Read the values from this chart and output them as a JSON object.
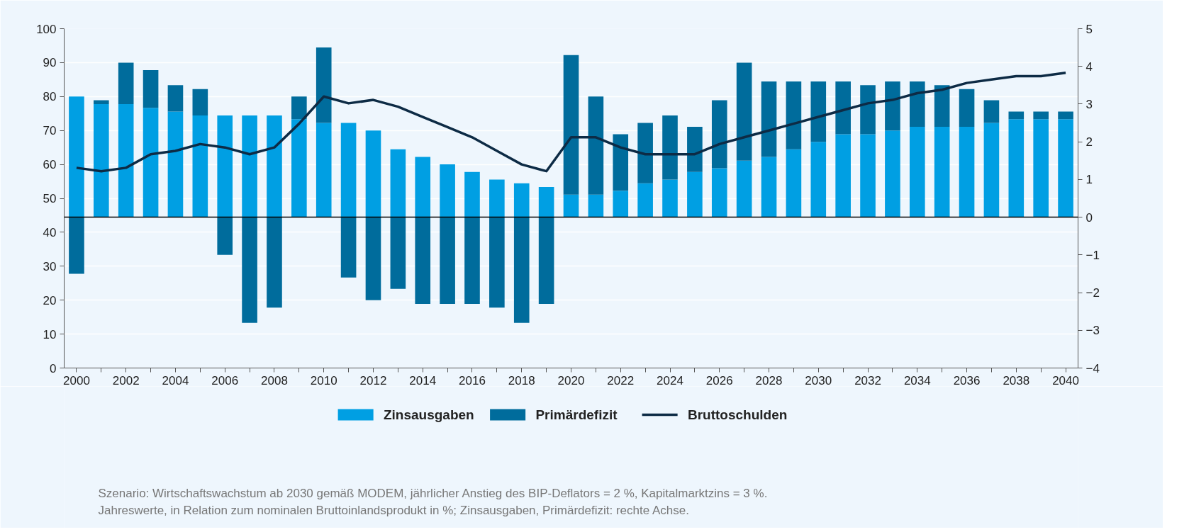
{
  "chart_data": {
    "type": "bar",
    "stacked": true,
    "x": [
      2000,
      2001,
      2002,
      2003,
      2004,
      2005,
      2006,
      2007,
      2008,
      2009,
      2010,
      2011,
      2012,
      2013,
      2014,
      2015,
      2016,
      2017,
      2018,
      2019,
      2020,
      2021,
      2022,
      2023,
      2024,
      2025,
      2026,
      2027,
      2028,
      2029,
      2030,
      2031,
      2032,
      2033,
      2034,
      2035,
      2036,
      2037,
      2038,
      2039,
      2040
    ],
    "series": [
      {
        "name": "Zinsausgaben",
        "color": "#009fe3",
        "axis": "y2",
        "values": [
          3.2,
          3.0,
          3.0,
          2.9,
          2.8,
          2.7,
          2.7,
          2.7,
          2.7,
          2.6,
          2.5,
          2.5,
          2.3,
          1.8,
          1.6,
          1.4,
          1.2,
          1.0,
          0.9,
          0.8,
          0.6,
          0.6,
          0.7,
          0.9,
          1.0,
          1.2,
          1.3,
          1.5,
          1.6,
          1.8,
          2.0,
          2.2,
          2.2,
          2.3,
          2.4,
          2.4,
          2.4,
          2.5,
          2.6,
          2.6,
          2.6
        ]
      },
      {
        "name": "Primärdefizit",
        "color": "#006c9c",
        "axis": "y2",
        "values": [
          -1.5,
          0.1,
          1.1,
          1.0,
          0.7,
          0.7,
          -1.0,
          -2.8,
          -2.4,
          0.6,
          2.0,
          -1.6,
          -2.2,
          -1.9,
          -2.3,
          -2.3,
          -2.3,
          -2.4,
          -2.8,
          -2.3,
          3.7,
          2.6,
          1.5,
          1.6,
          1.7,
          1.2,
          1.8,
          2.6,
          2.0,
          1.8,
          1.6,
          1.4,
          1.3,
          1.3,
          1.2,
          1.1,
          1.0,
          0.6,
          0.2,
          0.2,
          0.2
        ]
      },
      {
        "name": "Bruttoschulden",
        "type": "line",
        "color": "#0d2b45",
        "axis": "y",
        "values": [
          59,
          58,
          59,
          63,
          64,
          66,
          65,
          63,
          65,
          72,
          80,
          78,
          79,
          77,
          74,
          71,
          68,
          64,
          60,
          58,
          68,
          68,
          65,
          63,
          63,
          63,
          66,
          68,
          70,
          72,
          74,
          76,
          78,
          79,
          81,
          82,
          84,
          85,
          86,
          86,
          87
        ]
      }
    ],
    "xlim": [
      1999.5,
      2040.5
    ],
    "xticks": [
      2000,
      {
        "value": 2001,
        "label": null
      },
      2002,
      {
        "value": 2003,
        "label": null
      },
      2004,
      {
        "value": 2005,
        "label": null
      },
      2006,
      {
        "value": 2007,
        "label": null
      },
      2008,
      {
        "value": 2009,
        "label": null
      },
      2010,
      {
        "value": 2011,
        "label": null
      },
      2012,
      {
        "value": 2013,
        "label": null
      },
      2014,
      {
        "value": 2015,
        "label": null
      },
      2016,
      {
        "value": 2017,
        "label": null
      },
      2018,
      {
        "value": 2019,
        "label": null
      },
      2020,
      {
        "value": 2021,
        "label": null
      },
      2022,
      {
        "value": 2023,
        "label": null
      },
      2024,
      {
        "value": 2025,
        "label": null
      },
      2026,
      {
        "value": 2027,
        "label": null
      },
      2028,
      {
        "value": 2029,
        "label": null
      },
      2030,
      {
        "value": 2031,
        "label": null
      },
      2032,
      {
        "value": 2033,
        "label": null
      },
      2034,
      {
        "value": 2035,
        "label": null
      },
      2036,
      {
        "value": 2037,
        "label": null
      },
      2038,
      {
        "value": 2039,
        "label": null
      },
      2040
    ],
    "ylim": [
      0,
      100
    ],
    "yticks": [
      0,
      10,
      20,
      30,
      40,
      50,
      60,
      70,
      80,
      90,
      100
    ],
    "y2lim": [
      -4,
      5
    ],
    "y2ticks": [
      {
        "value": -4,
        "label": "−4"
      },
      {
        "value": -3,
        "label": "−3"
      },
      {
        "value": -2,
        "label": "−2"
      },
      {
        "value": -1,
        "label": "−1"
      },
      0,
      1,
      2,
      3,
      4,
      5
    ],
    "ref_lines": [
      {
        "axis": "y2",
        "value": 0,
        "color": "#000000"
      }
    ],
    "grid": "y",
    "legend": "bottom",
    "annotations": [
      "Szenario: Wirtschaftswachstum ab 2030 gemäß MODEM, jährlicher Anstieg des BIP-Deflators = 2 %, Kapitalmarktzins = 3 %.",
      "Jahreswerte, in Relation zum nominalen Bruttoinlandsprodukt in %; Zinsausgaben, Primärdefizit: rechte Achse."
    ]
  }
}
